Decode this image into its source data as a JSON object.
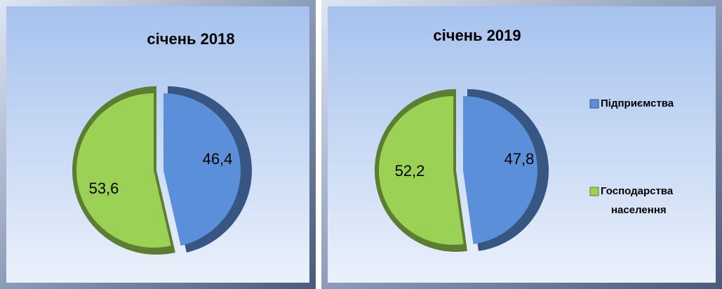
{
  "chart_data": [
    {
      "type": "pie",
      "title": "січень 2018",
      "values": [
        46.4,
        53.6
      ],
      "value_labels": [
        "46,4",
        "53,6"
      ],
      "colors": [
        "#5b8fd9",
        "#9bd155"
      ]
    },
    {
      "type": "pie",
      "title": "січень 2019",
      "categories": [
        "Підприємства",
        "Господарства населення"
      ],
      "values": [
        47.8,
        52.2
      ],
      "value_labels": [
        "47,8",
        "52,2"
      ],
      "colors": [
        "#5b8fd9",
        "#9bd155"
      ],
      "legend": "right"
    }
  ]
}
